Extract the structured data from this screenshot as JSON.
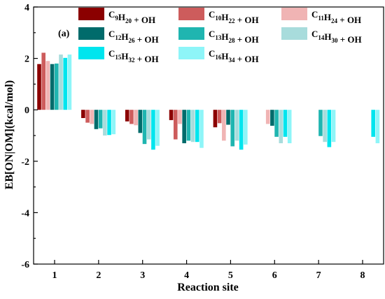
{
  "chart_data": {
    "type": "bar",
    "panel_label": "(a)",
    "xlabel": "Reaction site",
    "ylabel": "EB[ON|OM](kcal/mol)",
    "ylim": [
      -6,
      4
    ],
    "yticks": [
      -6,
      -4,
      -2,
      0,
      2,
      4
    ],
    "categories": [
      "1",
      "2",
      "3",
      "4",
      "5",
      "6",
      "7",
      "8"
    ],
    "legend_placement": "top",
    "series": [
      {
        "name_parts": [
          [
            "C",
            ""
          ],
          [
            "9",
            "sub"
          ],
          [
            "H",
            ""
          ],
          [
            "20",
            "sub"
          ],
          [
            " + OH",
            ""
          ]
        ],
        "color": "#8b0000",
        "values": [
          1.78,
          -0.32,
          -0.45,
          -0.4,
          -0.68,
          null,
          null,
          null
        ]
      },
      {
        "name_parts": [
          [
            "C",
            ""
          ],
          [
            "10",
            "sub"
          ],
          [
            "H",
            ""
          ],
          [
            "22",
            "sub"
          ],
          [
            " + OH",
            ""
          ]
        ],
        "color": "#cd5c5c",
        "values": [
          2.22,
          -0.5,
          -0.55,
          -1.15,
          -0.52,
          null,
          null,
          null
        ]
      },
      {
        "name_parts": [
          [
            "C",
            ""
          ],
          [
            "11",
            "sub"
          ],
          [
            "H",
            ""
          ],
          [
            "24",
            "sub"
          ],
          [
            " + OH",
            ""
          ]
        ],
        "color": "#f0b4b4",
        "values": [
          1.9,
          -0.55,
          -0.6,
          -0.55,
          -1.2,
          -0.55,
          null,
          null
        ]
      },
      {
        "name_parts": [
          [
            "C",
            ""
          ],
          [
            "12",
            "sub"
          ],
          [
            "H",
            ""
          ],
          [
            "26",
            "sub"
          ],
          [
            " + OH",
            ""
          ]
        ],
        "color": "#006b6b",
        "values": [
          1.78,
          -0.75,
          -0.9,
          -1.3,
          -0.58,
          -0.62,
          null,
          null
        ]
      },
      {
        "name_parts": [
          [
            "C",
            ""
          ],
          [
            "13",
            "sub"
          ],
          [
            "H",
            ""
          ],
          [
            "28",
            "sub"
          ],
          [
            " + OH",
            ""
          ]
        ],
        "color": "#1fb5b0",
        "values": [
          1.8,
          -0.72,
          -1.33,
          -1.2,
          -1.42,
          -1.05,
          -1.02,
          null
        ]
      },
      {
        "name_parts": [
          [
            "C",
            ""
          ],
          [
            "14",
            "sub"
          ],
          [
            "H",
            ""
          ],
          [
            "30",
            "sub"
          ],
          [
            " + OH",
            ""
          ]
        ],
        "color": "#a8dcdc",
        "values": [
          2.15,
          -1.0,
          -1.15,
          -1.25,
          -1.2,
          -1.3,
          -1.25,
          null
        ]
      },
      {
        "name_parts": [
          [
            "C",
            ""
          ],
          [
            "15",
            "sub"
          ],
          [
            "H",
            ""
          ],
          [
            "32",
            "sub"
          ],
          [
            " + OH",
            ""
          ]
        ],
        "color": "#00e5ee",
        "values": [
          2.02,
          -0.98,
          -1.55,
          -1.25,
          -1.55,
          -1.05,
          -1.45,
          -1.05
        ]
      },
      {
        "name_parts": [
          [
            "C",
            ""
          ],
          [
            "16",
            "sub"
          ],
          [
            "H",
            ""
          ],
          [
            "34",
            "sub"
          ],
          [
            " + OH",
            ""
          ]
        ],
        "color": "#8ef5f8",
        "values": [
          2.15,
          -0.95,
          -1.4,
          -1.48,
          -1.35,
          -1.3,
          -1.25,
          -1.3
        ]
      }
    ]
  }
}
